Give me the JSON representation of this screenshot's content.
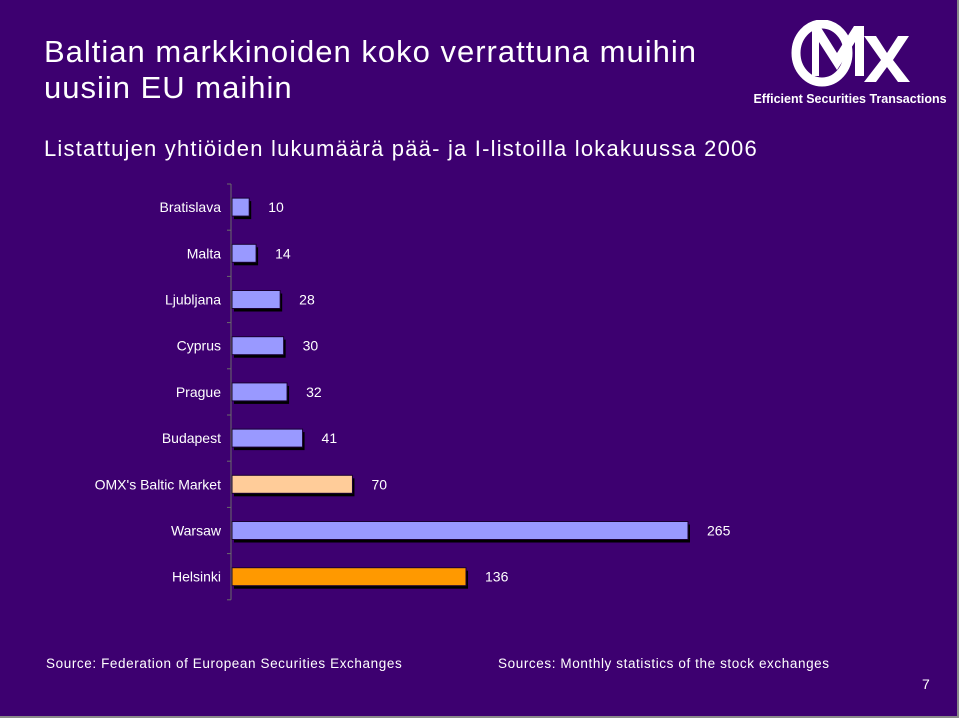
{
  "slide": {
    "title": "Baltian markkinoiden koko verrattuna muihin uusiin EU maihin",
    "source_left": "Source: Federation of European Securities Exchanges",
    "source_right": "Sources: Monthly statistics of the stock exchanges",
    "page_number": "7",
    "background_color": "#3d0070"
  },
  "logo": {
    "mark": "OMX",
    "tagline": "Efficient Securities Transactions"
  },
  "chart_data": {
    "type": "bar",
    "orientation": "horizontal",
    "title": "Listattujen yhtiöiden lukumäärä pää- ja I-listoilla lokakuussa 2006",
    "categories": [
      "Bratislava",
      "Malta",
      "Ljubljana",
      "Cyprus",
      "Prague",
      "Budapest",
      "OMX's Baltic Market",
      "Warsaw",
      "Helsinki"
    ],
    "values": [
      10,
      14,
      28,
      30,
      32,
      41,
      70,
      265,
      136
    ],
    "data_labels": [
      "10",
      "14",
      "28",
      "30",
      "32",
      "41",
      "70",
      "265",
      "136"
    ],
    "bar_colors": [
      "#9999ff",
      "#9999ff",
      "#9999ff",
      "#9999ff",
      "#9999ff",
      "#9999ff",
      "#ffcc99",
      "#9999ff",
      "#ff9900"
    ],
    "xlim": [
      0,
      265
    ],
    "grid": false,
    "legend": "none"
  }
}
